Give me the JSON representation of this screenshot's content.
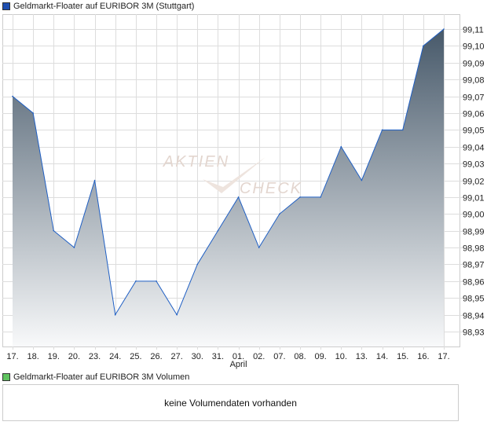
{
  "chart_data": {
    "type": "area",
    "title": "Geldmarkt-Floater auf EURIBOR 3M (Stuttgart)",
    "categories": [
      "17.",
      "18.",
      "19.",
      "20.",
      "23.",
      "24.",
      "25.",
      "26.",
      "27.",
      "30.",
      "31.",
      "01.",
      "02.",
      "07.",
      "08.",
      "09.",
      "10.",
      "13.",
      "14.",
      "15.",
      "16.",
      "17."
    ],
    "month_label": "April",
    "values": [
      99.07,
      99.06,
      98.99,
      98.98,
      99.02,
      98.94,
      98.96,
      98.96,
      98.94,
      98.97,
      98.99,
      99.01,
      98.98,
      99.0,
      99.01,
      99.01,
      99.04,
      99.02,
      99.05,
      99.05,
      99.1,
      99.11
    ],
    "yticks": [
      "99,11",
      "99,10",
      "99,09",
      "99,08",
      "99,07",
      "99,06",
      "99,05",
      "99,04",
      "99,03",
      "99,02",
      "99,01",
      "99,00",
      "98,99",
      "98,98",
      "98,97",
      "98,96",
      "98,95",
      "98,94",
      "98,93"
    ],
    "ylim": [
      98.93,
      99.11
    ],
    "grid": true,
    "colors": {
      "line": "#1f5fc4",
      "fill_top": "#47596a",
      "fill_bottom": "#f8f9fa",
      "legend_price": "#1f4fb0",
      "legend_volume": "#5fc35f"
    }
  },
  "watermark": "AKTIEN CHECK",
  "volume": {
    "legend": "Geldmarkt-Floater auf EURIBOR 3M Volumen",
    "message": "keine Volumendaten vorhanden"
  }
}
